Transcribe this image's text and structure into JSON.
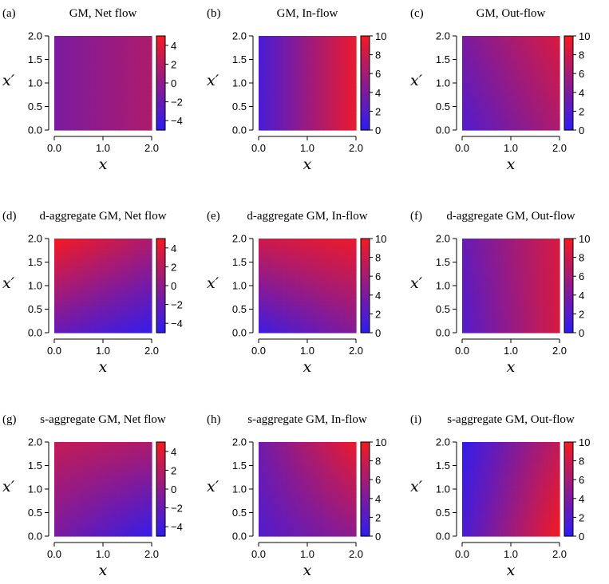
{
  "chart_data": [
    {
      "type": "heatmap",
      "panel": "(a)",
      "title": "GM, Net flow",
      "xlabel": "x",
      "ylabel": "x′",
      "xlim": [
        0,
        2.0
      ],
      "ylim": [
        0,
        2.0
      ],
      "x_ticks": [
        "0.0",
        "1.0",
        "2.0"
      ],
      "y_ticks": [
        "0.0",
        "0.5",
        "1.0",
        "1.5",
        "2.0"
      ],
      "color_range": [
        -5,
        5
      ],
      "colorbar_ticks": [
        "4",
        "2",
        "0",
        "−2",
        "−4"
      ],
      "corner_values": {
        "x0_y0": -1.0,
        "x2_y0": 1.5,
        "x0_y2": -1.0,
        "x2_y2": 1.5
      }
    },
    {
      "type": "heatmap",
      "panel": "(b)",
      "title": "GM, In-flow",
      "xlabel": "x",
      "ylabel": "x′",
      "xlim": [
        0,
        2.0
      ],
      "ylim": [
        0,
        2.0
      ],
      "x_ticks": [
        "0.0",
        "1.0",
        "2.0"
      ],
      "y_ticks": [
        "0.0",
        "0.5",
        "1.0",
        "1.5",
        "2.0"
      ],
      "color_range": [
        0,
        10
      ],
      "colorbar_ticks": [
        "10",
        "8",
        "6",
        "4",
        "2",
        "0"
      ],
      "corner_values": {
        "x0_y0": 1.5,
        "x2_y0": 9.5,
        "x0_y2": 1.5,
        "x2_y2": 9.5
      }
    },
    {
      "type": "heatmap",
      "panel": "(c)",
      "title": "GM, Out-flow",
      "xlabel": "x",
      "ylabel": "x′",
      "xlim": [
        0,
        2.0
      ],
      "ylim": [
        0,
        2.0
      ],
      "x_ticks": [
        "0.0",
        "1.0",
        "2.0"
      ],
      "y_ticks": [
        "0.0",
        "0.5",
        "1.0",
        "1.5",
        "2.0"
      ],
      "color_range": [
        0,
        10
      ],
      "colorbar_ticks": [
        "10",
        "8",
        "6",
        "4",
        "2",
        "0"
      ],
      "corner_values": {
        "x0_y0": 2.0,
        "x2_y0": 6.5,
        "x0_y2": 4.0,
        "x2_y2": 8.5
      }
    },
    {
      "type": "heatmap",
      "panel": "(d)",
      "title": "d-aggregate GM, Net flow",
      "xlabel": "x",
      "ylabel": "x′",
      "xlim": [
        0,
        2.0
      ],
      "ylim": [
        0,
        2.0
      ],
      "x_ticks": [
        "0.0",
        "1.0",
        "2.0"
      ],
      "y_ticks": [
        "0.0",
        "0.5",
        "1.0",
        "1.5",
        "2.0"
      ],
      "color_range": [
        -5,
        5
      ],
      "colorbar_ticks": [
        "4",
        "2",
        "0",
        "−2",
        "−4"
      ],
      "corner_values": {
        "x0_y0": -2.0,
        "x2_y0": -4.5,
        "x0_y2": 5.0,
        "x2_y2": 1.5
      }
    },
    {
      "type": "heatmap",
      "panel": "(e)",
      "title": "d-aggregate GM, In-flow",
      "xlabel": "x",
      "ylabel": "x′",
      "xlim": [
        0,
        2.0
      ],
      "ylim": [
        0,
        2.0
      ],
      "x_ticks": [
        "0.0",
        "1.0",
        "2.0"
      ],
      "y_ticks": [
        "0.0",
        "0.5",
        "1.0",
        "1.5",
        "2.0"
      ],
      "color_range": [
        0,
        10
      ],
      "colorbar_ticks": [
        "10",
        "8",
        "6",
        "4",
        "2",
        "0"
      ],
      "corner_values": {
        "x0_y0": 1.0,
        "x2_y0": 4.5,
        "x0_y2": 8.0,
        "x2_y2": 9.5
      }
    },
    {
      "type": "heatmap",
      "panel": "(f)",
      "title": "d-aggregate GM, Out-flow",
      "xlabel": "x",
      "ylabel": "x′",
      "xlim": [
        0,
        2.0
      ],
      "ylim": [
        0,
        2.0
      ],
      "x_ticks": [
        "0.0",
        "1.0",
        "2.0"
      ],
      "y_ticks": [
        "0.0",
        "0.5",
        "1.0",
        "1.5",
        "2.0"
      ],
      "color_range": [
        0,
        10
      ],
      "colorbar_ticks": [
        "10",
        "8",
        "6",
        "4",
        "2",
        "0"
      ],
      "corner_values": {
        "x0_y0": 2.0,
        "x2_y0": 8.5,
        "x0_y2": 3.0,
        "x2_y2": 8.5
      }
    },
    {
      "type": "heatmap",
      "panel": "(g)",
      "title": "s-aggregate GM, Net flow",
      "xlabel": "x",
      "ylabel": "x′",
      "xlim": [
        0,
        2.0
      ],
      "ylim": [
        0,
        2.0
      ],
      "x_ticks": [
        "0.0",
        "1.0",
        "2.0"
      ],
      "y_ticks": [
        "0.0",
        "0.5",
        "1.0",
        "1.5",
        "2.0"
      ],
      "color_range": [
        -5,
        5
      ],
      "colorbar_ticks": [
        "4",
        "2",
        "0",
        "−2",
        "−4"
      ],
      "corner_values": {
        "x0_y0": -1.0,
        "x2_y0": -4.5,
        "x0_y2": 2.5,
        "x2_y2": 1.5
      }
    },
    {
      "type": "heatmap",
      "panel": "(h)",
      "title": "s-aggregate GM, In-flow",
      "xlabel": "x",
      "ylabel": "x′",
      "xlim": [
        0,
        2.0
      ],
      "ylim": [
        0,
        2.0
      ],
      "x_ticks": [
        "0.0",
        "1.0",
        "2.0"
      ],
      "y_ticks": [
        "0.0",
        "0.5",
        "1.0",
        "1.5",
        "2.0"
      ],
      "color_range": [
        0,
        10
      ],
      "colorbar_ticks": [
        "10",
        "8",
        "6",
        "4",
        "2",
        "0"
      ],
      "corner_values": {
        "x0_y0": 2.0,
        "x2_y0": 5.0,
        "x0_y2": 3.5,
        "x2_y2": 9.5
      }
    },
    {
      "type": "heatmap",
      "panel": "(i)",
      "title": "s-aggregate GM, Out-flow",
      "xlabel": "x",
      "ylabel": "x′",
      "xlim": [
        0,
        2.0
      ],
      "ylim": [
        0,
        2.0
      ],
      "x_ticks": [
        "0.0",
        "1.0",
        "2.0"
      ],
      "y_ticks": [
        "0.0",
        "0.5",
        "1.0",
        "1.5",
        "2.0"
      ],
      "color_range": [
        0,
        10
      ],
      "colorbar_ticks": [
        "10",
        "8",
        "6",
        "4",
        "2",
        "0"
      ],
      "corner_values": {
        "x0_y0": 1.5,
        "x2_y0": 10.0,
        "x0_y2": 0.5,
        "x2_y2": 7.5
      }
    }
  ],
  "colors": {
    "low": "#2a1cf5",
    "high": "#f41a22",
    "axis": "#000000"
  }
}
